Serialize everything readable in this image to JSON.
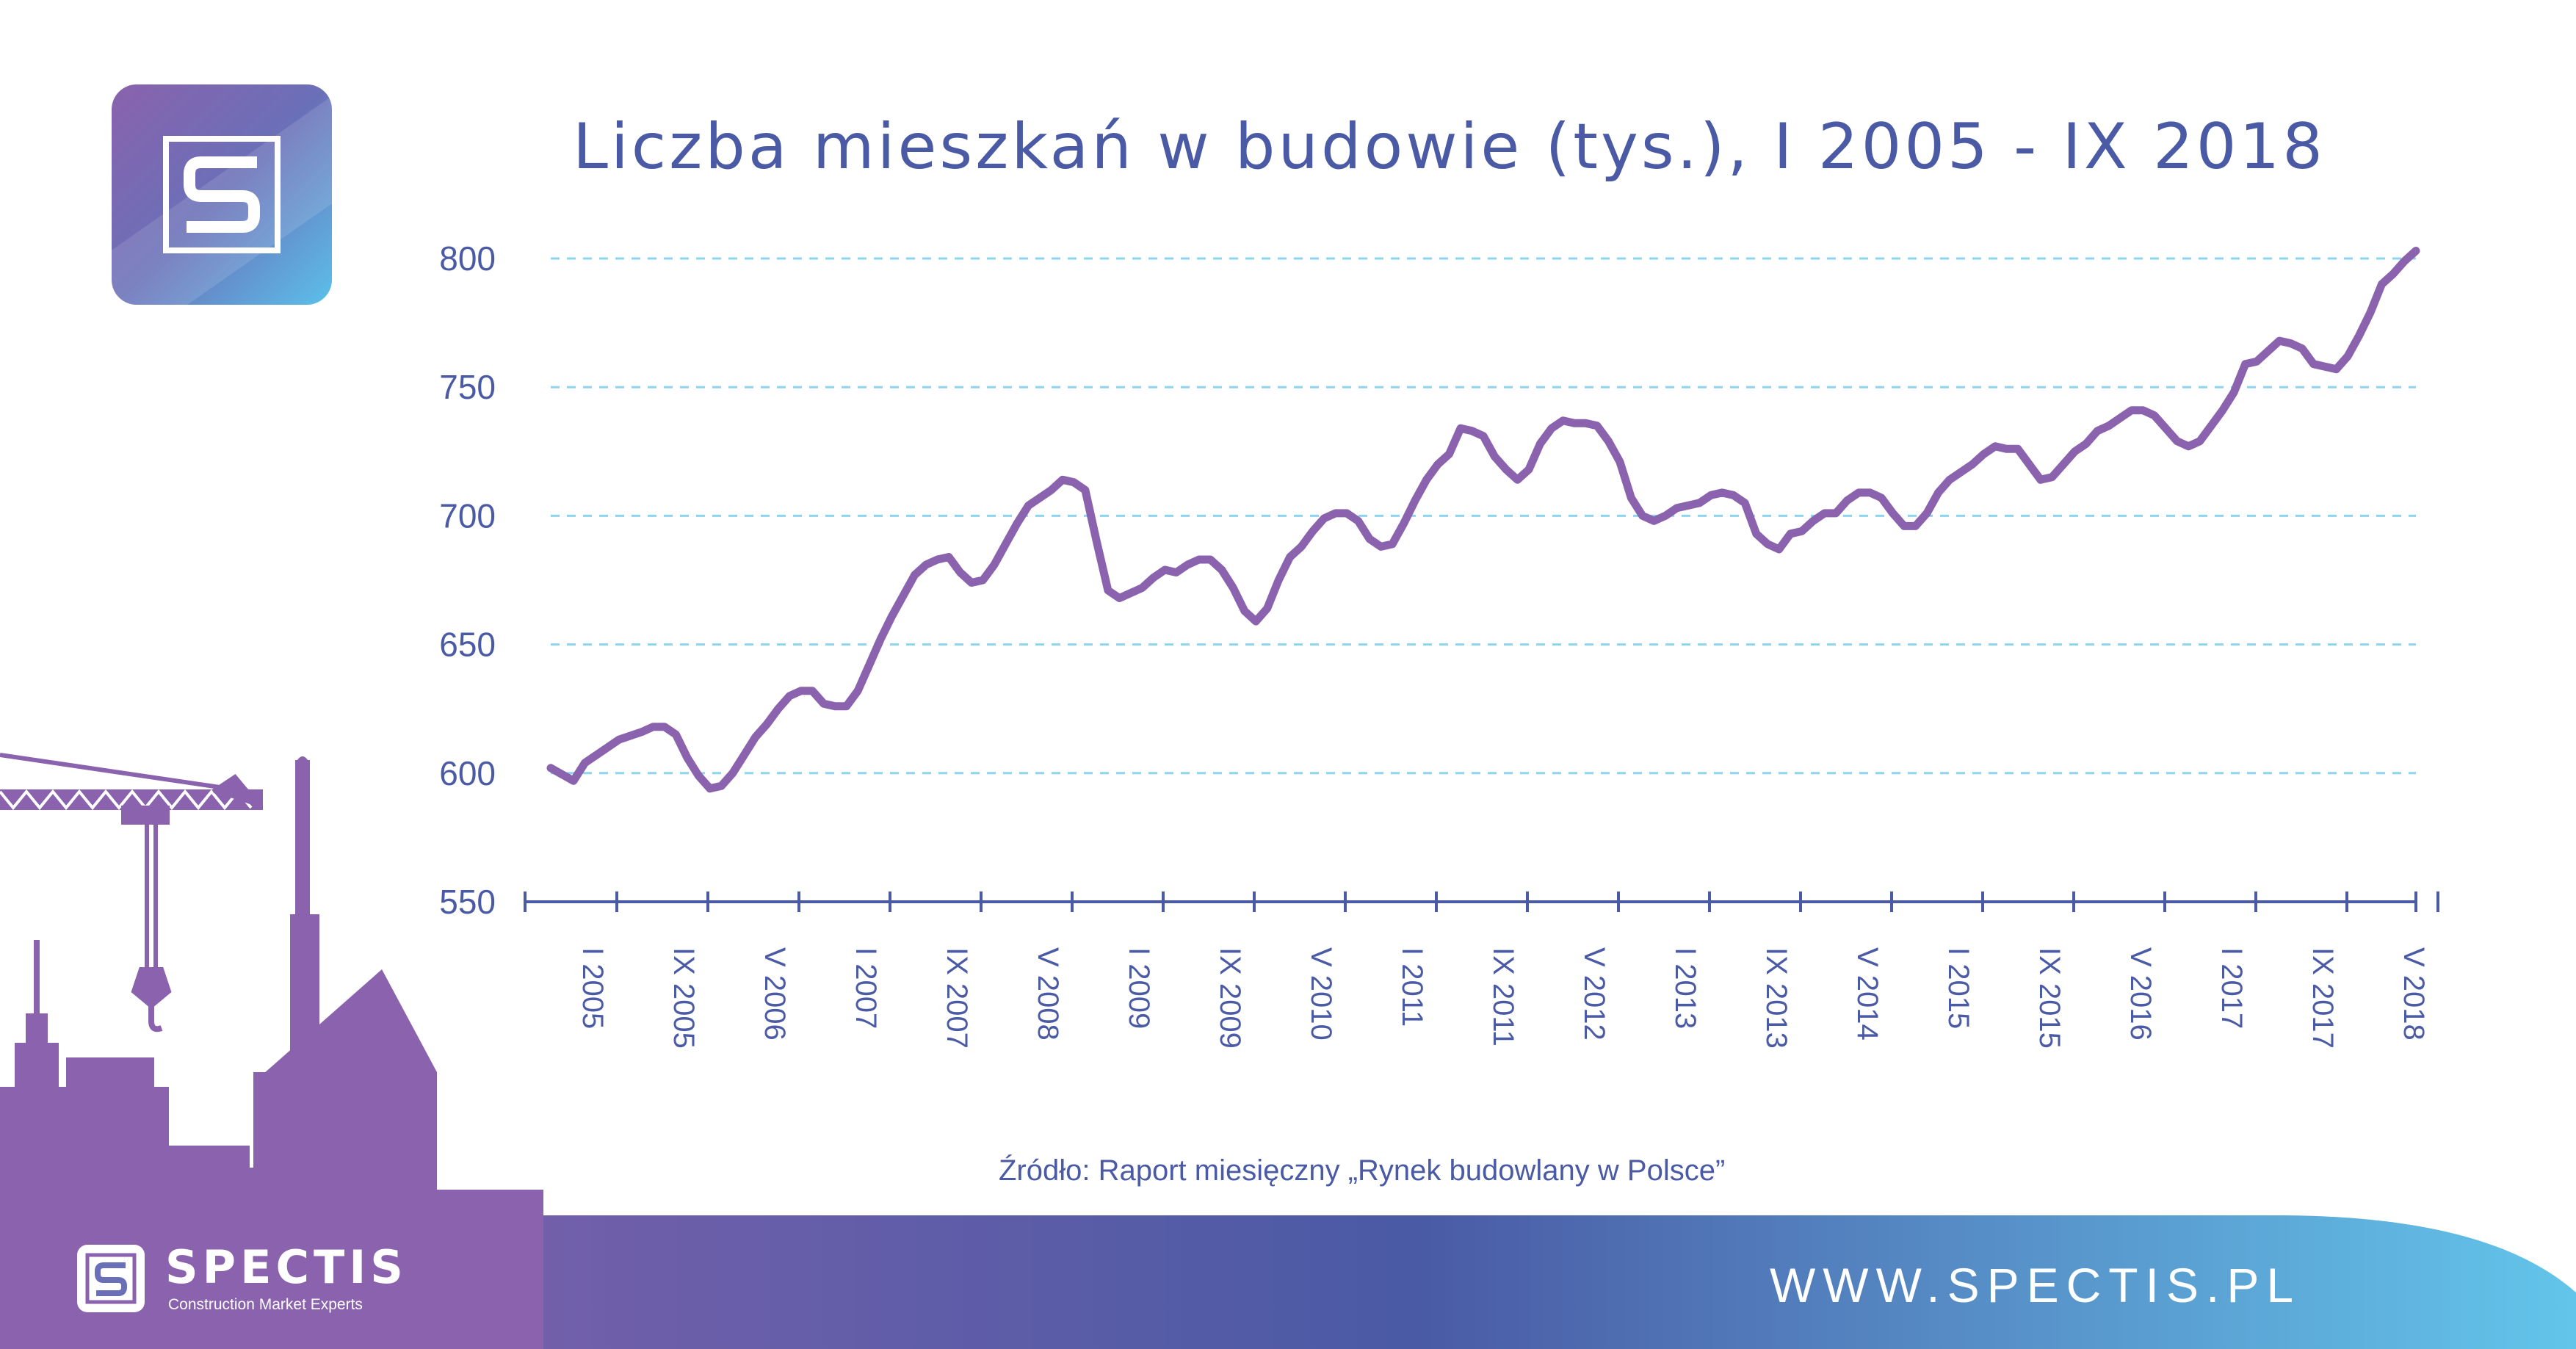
{
  "header": {
    "title": "Liczba mieszkań w budowie (tys.), I 2005 - IX 2018"
  },
  "footer": {
    "source": "Źródło: Raport miesięczny „Rynek budowlany w Polsce”",
    "brand_name": "SPECTIS",
    "brand_tagline": "Construction Market Experts",
    "url": "WWW.SPECTIS.PL"
  },
  "colors": {
    "line": "#8a62ad",
    "axis": "#4a5aa5",
    "grid": "#8fd3ef",
    "silhouette": "#8a62ad",
    "footer_start": "#8a62ad",
    "footer_mid": "#4a5aa5",
    "footer_end": "#63c5ea"
  },
  "icons": {
    "logo": "spectis-s-logo-icon",
    "crane": "crane-icon",
    "buildings": "buildings-silhouette-icon"
  },
  "chart_data": {
    "type": "line",
    "title": "Liczba mieszkań w budowie (tys.), I 2005 - IX 2018",
    "xlabel": "",
    "ylabel": "",
    "ylim": [
      550,
      800
    ],
    "yticks": [
      550,
      600,
      650,
      700,
      750,
      800
    ],
    "grid": true,
    "x_tick_labels": [
      "I 2005",
      "IX 2005",
      "V 2006",
      "I 2007",
      "IX 2007",
      "V 2008",
      "I 2009",
      "IX 2009",
      "V 2010",
      "I 2011",
      "IX 2011",
      "V 2012",
      "I 2013",
      "IX 2013",
      "V 2014",
      "I 2015",
      "IX 2015",
      "V 2016",
      "I 2017",
      "IX 2017",
      "V 2018"
    ],
    "x_tick_months": [
      0,
      8,
      16,
      24,
      32,
      40,
      48,
      56,
      64,
      72,
      80,
      88,
      96,
      104,
      112,
      120,
      128,
      136,
      144,
      152,
      160
    ],
    "x_month_range": [
      0,
      164
    ],
    "series": [
      {
        "values": [
          [
            0,
            602
          ],
          [
            2,
            597
          ],
          [
            3,
            604
          ],
          [
            5,
            610
          ],
          [
            6,
            613
          ],
          [
            8,
            616
          ],
          [
            9,
            618
          ],
          [
            10,
            618
          ],
          [
            11,
            615
          ],
          [
            12,
            606
          ],
          [
            13,
            599
          ],
          [
            14,
            594
          ],
          [
            15,
            595
          ],
          [
            16,
            600
          ],
          [
            17,
            607
          ],
          [
            18,
            614
          ],
          [
            19,
            619
          ],
          [
            20,
            625
          ],
          [
            21,
            630
          ],
          [
            22,
            632
          ],
          [
            23,
            632
          ],
          [
            24,
            627
          ],
          [
            25,
            626
          ],
          [
            26,
            626
          ],
          [
            27,
            632
          ],
          [
            28,
            642
          ],
          [
            29,
            652
          ],
          [
            30,
            661
          ],
          [
            31,
            669
          ],
          [
            32,
            677
          ],
          [
            33,
            681
          ],
          [
            34,
            683
          ],
          [
            35,
            684
          ],
          [
            36,
            678
          ],
          [
            37,
            674
          ],
          [
            38,
            675
          ],
          [
            39,
            681
          ],
          [
            40,
            689
          ],
          [
            41,
            697
          ],
          [
            42,
            704
          ],
          [
            43,
            707
          ],
          [
            44,
            710
          ],
          [
            45,
            714
          ],
          [
            46,
            713
          ],
          [
            47,
            710
          ],
          [
            48,
            690
          ],
          [
            49,
            671
          ],
          [
            50,
            668
          ],
          [
            51,
            670
          ],
          [
            52,
            672
          ],
          [
            53,
            676
          ],
          [
            54,
            679
          ],
          [
            55,
            678
          ],
          [
            56,
            681
          ],
          [
            57,
            683
          ],
          [
            58,
            683
          ],
          [
            59,
            679
          ],
          [
            60,
            672
          ],
          [
            61,
            663
          ],
          [
            62,
            659
          ],
          [
            63,
            664
          ],
          [
            64,
            675
          ],
          [
            65,
            684
          ],
          [
            66,
            688
          ],
          [
            67,
            694
          ],
          [
            68,
            699
          ],
          [
            69,
            701
          ],
          [
            70,
            701
          ],
          [
            71,
            698
          ],
          [
            72,
            691
          ],
          [
            73,
            688
          ],
          [
            74,
            689
          ],
          [
            75,
            697
          ],
          [
            76,
            706
          ],
          [
            77,
            714
          ],
          [
            78,
            720
          ],
          [
            79,
            724
          ],
          [
            80,
            734
          ],
          [
            81,
            733
          ],
          [
            82,
            731
          ],
          [
            83,
            723
          ],
          [
            84,
            718
          ],
          [
            85,
            714
          ],
          [
            86,
            718
          ],
          [
            87,
            728
          ],
          [
            88,
            734
          ],
          [
            89,
            737
          ],
          [
            90,
            736
          ],
          [
            91,
            736
          ],
          [
            92,
            735
          ],
          [
            93,
            729
          ],
          [
            94,
            721
          ],
          [
            95,
            707
          ],
          [
            96,
            700
          ],
          [
            97,
            698
          ],
          [
            98,
            700
          ],
          [
            99,
            703
          ],
          [
            100,
            704
          ],
          [
            101,
            705
          ],
          [
            102,
            708
          ],
          [
            103,
            709
          ],
          [
            104,
            708
          ],
          [
            105,
            705
          ],
          [
            106,
            693
          ],
          [
            107,
            689
          ],
          [
            108,
            687
          ],
          [
            109,
            693
          ],
          [
            110,
            694
          ],
          [
            111,
            698
          ],
          [
            112,
            701
          ],
          [
            113,
            701
          ],
          [
            114,
            706
          ],
          [
            115,
            709
          ],
          [
            116,
            709
          ],
          [
            117,
            707
          ],
          [
            118,
            701
          ],
          [
            119,
            696
          ],
          [
            120,
            696
          ],
          [
            121,
            701
          ],
          [
            122,
            709
          ],
          [
            123,
            714
          ],
          [
            124,
            717
          ],
          [
            125,
            720
          ],
          [
            126,
            724
          ],
          [
            127,
            727
          ],
          [
            128,
            726
          ],
          [
            129,
            726
          ],
          [
            130,
            720
          ],
          [
            131,
            714
          ],
          [
            132,
            715
          ],
          [
            133,
            720
          ],
          [
            134,
            725
          ],
          [
            135,
            728
          ],
          [
            136,
            733
          ],
          [
            137,
            735
          ],
          [
            138,
            738
          ],
          [
            139,
            741
          ],
          [
            140,
            741
          ],
          [
            141,
            739
          ],
          [
            142,
            734
          ],
          [
            143,
            729
          ],
          [
            144,
            727
          ],
          [
            145,
            729
          ],
          [
            146,
            735
          ],
          [
            147,
            741
          ],
          [
            148,
            748
          ],
          [
            149,
            759
          ],
          [
            150,
            760
          ],
          [
            151,
            764
          ],
          [
            152,
            768
          ],
          [
            153,
            767
          ],
          [
            154,
            765
          ],
          [
            155,
            759
          ],
          [
            156,
            758
          ],
          [
            157,
            757
          ],
          [
            158,
            762
          ],
          [
            159,
            770
          ],
          [
            160,
            779
          ],
          [
            161,
            790
          ],
          [
            162,
            794
          ],
          [
            163,
            799
          ],
          [
            164,
            803
          ]
        ]
      }
    ]
  }
}
